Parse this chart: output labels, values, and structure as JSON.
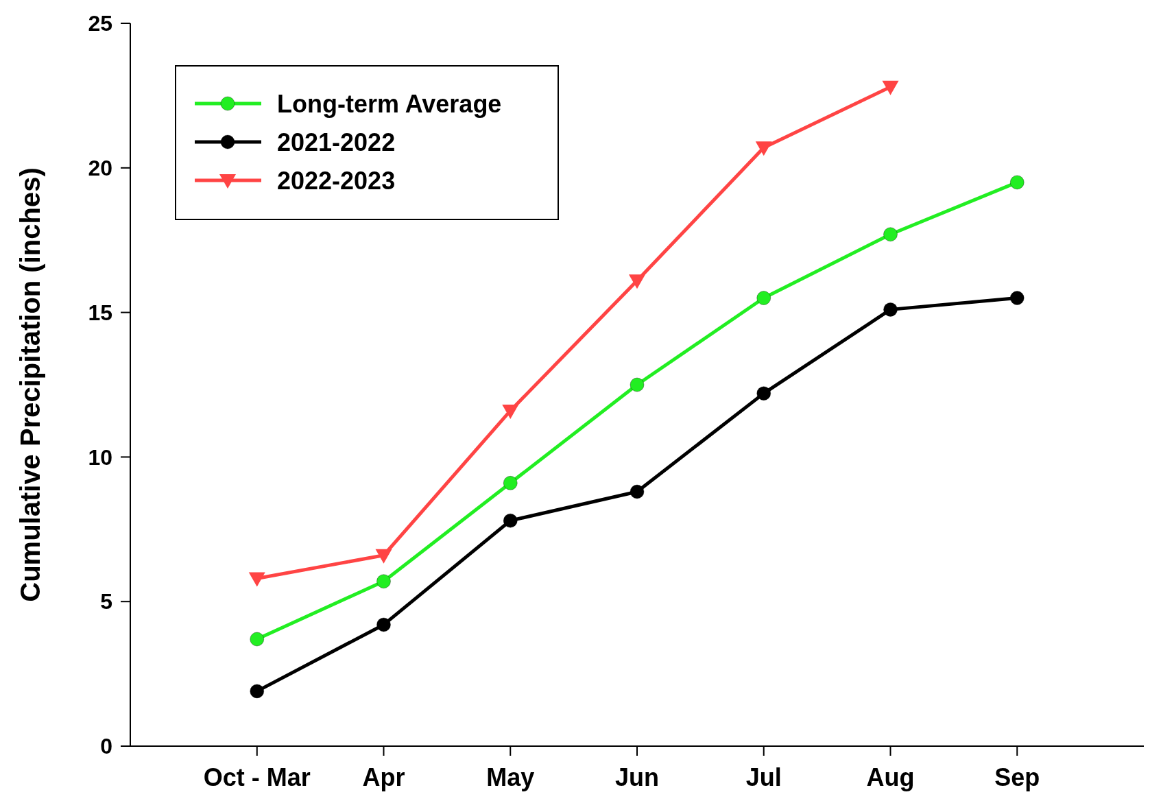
{
  "chart_data": {
    "type": "line",
    "ylabel": "Cumulative Precipitation (inches)",
    "categories": [
      "Oct - Mar",
      "Apr",
      "May",
      "Jun",
      "Jul",
      "Aug",
      "Sep"
    ],
    "ylim": [
      0,
      25
    ],
    "yticks": [
      0,
      5,
      10,
      15,
      20,
      25
    ],
    "grid": false,
    "legend": "top left",
    "line_style": "solid",
    "series": [
      {
        "name": "Long-term Average",
        "color": "#22ee22",
        "marker": "circle",
        "values": [
          3.7,
          5.7,
          9.1,
          12.5,
          15.5,
          17.7,
          19.5
        ]
      },
      {
        "name": "2021-2022",
        "color": "#000000",
        "marker": "circle",
        "values": [
          1.9,
          4.2,
          7.8,
          8.8,
          12.2,
          15.1,
          15.5
        ]
      },
      {
        "name": "2022-2023",
        "color": "#ff4444",
        "marker": "triangle",
        "values": [
          5.8,
          6.6,
          11.6,
          16.1,
          20.7,
          22.8,
          null
        ]
      }
    ]
  }
}
